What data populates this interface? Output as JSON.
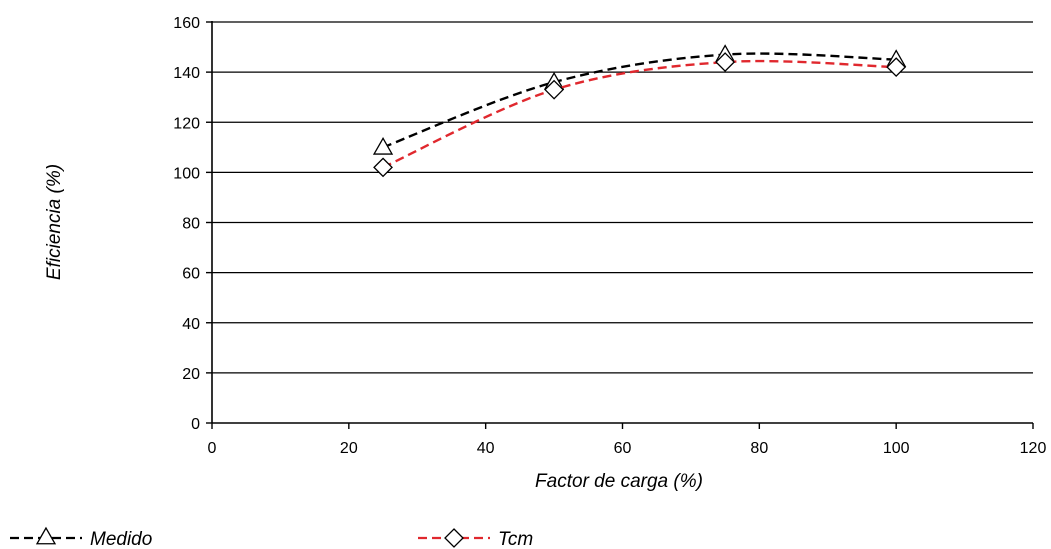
{
  "chart_data": {
    "type": "line",
    "title": "",
    "xlabel": "Factor de carga (%)",
    "ylabel": "Eficiencia (%)",
    "xlim": [
      0,
      120
    ],
    "ylim": [
      0,
      160
    ],
    "xticks": [
      0,
      20,
      40,
      60,
      80,
      100,
      120
    ],
    "yticks": [
      0,
      20,
      40,
      60,
      80,
      100,
      120,
      140,
      160
    ],
    "grid": "horizontal",
    "legend_position": "bottom",
    "series": [
      {
        "name": "Medido",
        "marker": "triangle",
        "line_style": "dashed",
        "color": "#000000",
        "x": [
          25,
          50,
          75,
          100
        ],
        "y": [
          110,
          136,
          147,
          145
        ]
      },
      {
        "name": "Tcm",
        "marker": "diamond",
        "line_style": "dashed",
        "color": "#e0282e",
        "x": [
          25,
          50,
          75,
          100
        ],
        "y": [
          102,
          133,
          144,
          142
        ]
      }
    ]
  }
}
